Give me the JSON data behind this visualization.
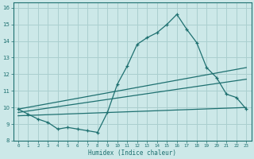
{
  "xlabel": "Humidex (Indice chaleur)",
  "bg_color": "#cce8e8",
  "grid_color": "#aacfcf",
  "line_color": "#1e7070",
  "xlim": [
    -0.5,
    23.5
  ],
  "ylim": [
    8,
    16.3
  ],
  "xticks": [
    0,
    1,
    2,
    3,
    4,
    5,
    6,
    7,
    8,
    9,
    10,
    11,
    12,
    13,
    14,
    15,
    16,
    17,
    18,
    19,
    20,
    21,
    22,
    23
  ],
  "yticks": [
    8,
    9,
    10,
    11,
    12,
    13,
    14,
    15,
    16
  ],
  "series1_x": [
    0,
    1,
    2,
    3,
    4,
    5,
    6,
    7,
    8,
    9,
    10,
    11,
    12,
    13,
    14,
    15,
    16,
    17,
    18,
    19,
    20,
    21,
    22,
    23
  ],
  "series1_y": [
    9.9,
    9.6,
    9.3,
    9.1,
    8.7,
    8.8,
    8.7,
    8.6,
    8.5,
    9.7,
    11.4,
    12.5,
    13.8,
    14.2,
    14.5,
    15.0,
    15.6,
    14.7,
    13.9,
    12.4,
    11.8,
    10.8,
    10.6,
    9.9
  ],
  "line1_x": [
    0,
    23
  ],
  "line1_y": [
    9.9,
    12.4
  ],
  "line2_x": [
    0,
    23
  ],
  "line2_y": [
    9.7,
    11.7
  ],
  "line3_x": [
    0,
    23
  ],
  "line3_y": [
    9.5,
    10.0
  ]
}
